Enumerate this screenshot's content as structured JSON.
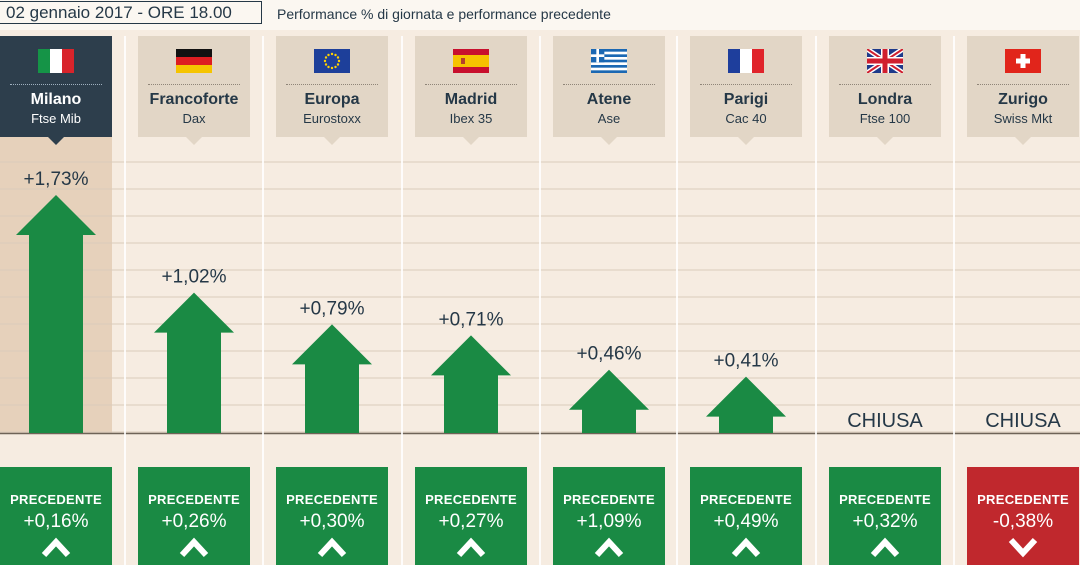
{
  "header": {
    "date_label": "02 gennaio 2017 - ORE 18.00",
    "subtitle": "Performance % di giornata e performance precedente"
  },
  "colors": {
    "background": "#f6ece1",
    "card": "#e2d6c6",
    "card_active": "#2d3e4c",
    "positive": "#1a8a44",
    "negative": "#c0282d",
    "text": "#253847"
  },
  "chart_data": {
    "type": "bar",
    "categories": [
      "Milano",
      "Francoforte",
      "Europa",
      "Madrid",
      "Atene",
      "Parigi",
      "Londra",
      "Zurigo"
    ],
    "series": [
      {
        "name": "",
        "values": [
          1.73,
          1.02,
          0.79,
          0.71,
          0.46,
          0.41,
          null,
          null
        ]
      }
    ],
    "ylim": [
      0,
      1.73
    ],
    "grid": true,
    "markets": [
      {
        "city": "Milano",
        "index": "Ftse Mib",
        "flag": "it-flag-icon",
        "active": true,
        "value_label": "+1,73%",
        "value": 1.73,
        "prev_label": "PRECEDENTE",
        "prev_value_label": "+0,16%",
        "prev": 0.16,
        "prev_icon": "chevron-up-icon"
      },
      {
        "city": "Francoforte",
        "index": "Dax",
        "flag": "de-flag-icon",
        "active": false,
        "value_label": "+1,02%",
        "value": 1.02,
        "prev_label": "PRECEDENTE",
        "prev_value_label": "+0,26%",
        "prev": 0.26,
        "prev_icon": "chevron-up-icon"
      },
      {
        "city": "Europa",
        "index": "Eurostoxx",
        "flag": "eu-flag-icon",
        "active": false,
        "value_label": "+0,79%",
        "value": 0.79,
        "prev_label": "PRECEDENTE",
        "prev_value_label": "+0,30%",
        "prev": 0.3,
        "prev_icon": "chevron-up-icon"
      },
      {
        "city": "Madrid",
        "index": "Ibex 35",
        "flag": "es-flag-icon",
        "active": false,
        "value_label": "+0,71%",
        "value": 0.71,
        "prev_label": "PRECEDENTE",
        "prev_value_label": "+0,27%",
        "prev": 0.27,
        "prev_icon": "chevron-up-icon"
      },
      {
        "city": "Atene",
        "index": "Ase",
        "flag": "gr-flag-icon",
        "active": false,
        "value_label": "+0,46%",
        "value": 0.46,
        "prev_label": "PRECEDENTE",
        "prev_value_label": "+1,09%",
        "prev": 1.09,
        "prev_icon": "chevron-up-icon"
      },
      {
        "city": "Parigi",
        "index": "Cac 40",
        "flag": "fr-flag-icon",
        "active": false,
        "value_label": "+0,41%",
        "value": 0.41,
        "prev_label": "PRECEDENTE",
        "prev_value_label": "+0,49%",
        "prev": 0.49,
        "prev_icon": "chevron-up-icon"
      },
      {
        "city": "Londra",
        "index": "Ftse 100",
        "flag": "uk-flag-icon",
        "active": false,
        "value_label": "CHIUSA",
        "value": null,
        "prev_label": "PRECEDENTE",
        "prev_value_label": "+0,32%",
        "prev": 0.32,
        "prev_icon": "chevron-up-icon"
      },
      {
        "city": "Zurigo",
        "index": "Swiss Mkt",
        "flag": "ch-flag-icon",
        "active": false,
        "value_label": "CHIUSA",
        "value": null,
        "prev_label": "PRECEDENTE",
        "prev_value_label": "-0,38%",
        "prev": -0.38,
        "prev_icon": "chevron-down-icon"
      }
    ]
  }
}
